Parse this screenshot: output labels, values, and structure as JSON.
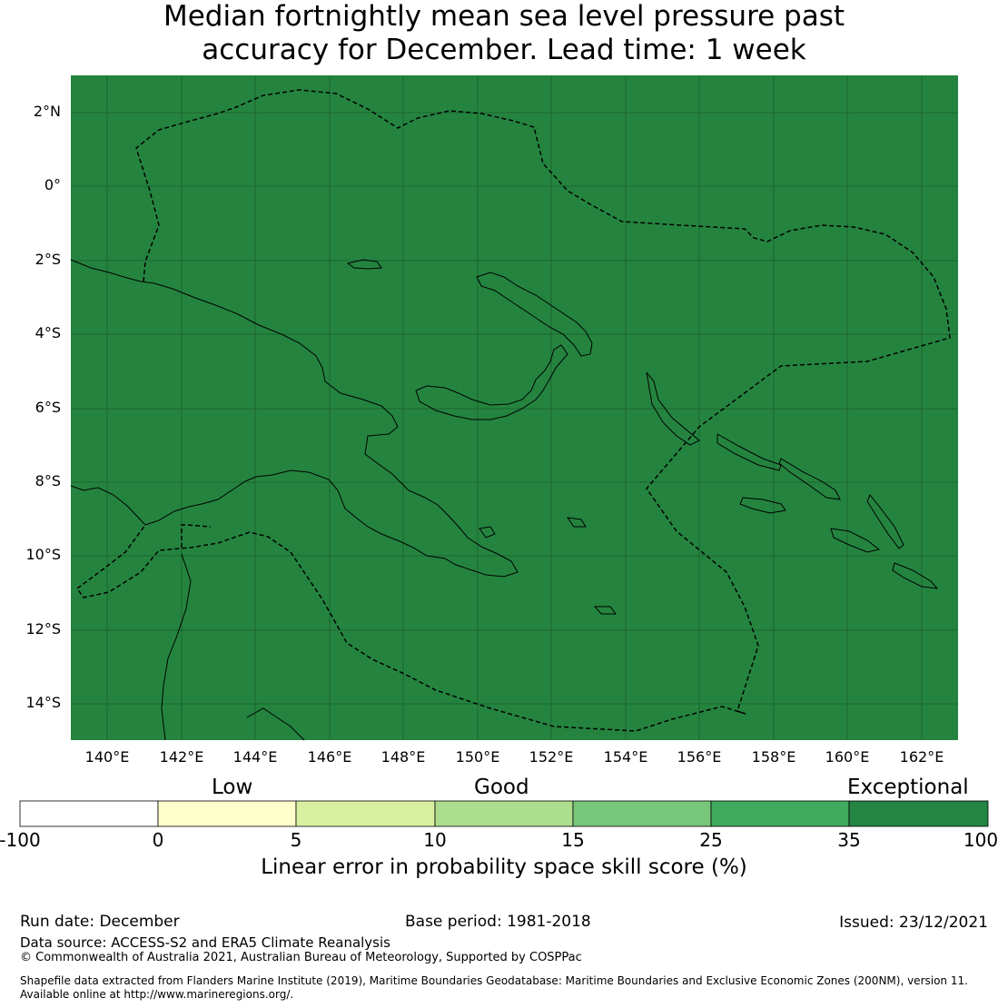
{
  "title_line1": "Median fortnightly mean sea level pressure past",
  "title_line2": "accuracy for December. Lead time: 1 week",
  "map": {
    "background_color": "#24843f",
    "lat_labels": [
      "2°N",
      "0°",
      "2°S",
      "4°S",
      "6°S",
      "8°S",
      "10°S",
      "12°S",
      "14°S"
    ],
    "lon_labels": [
      "140°E",
      "142°E",
      "144°E",
      "146°E",
      "148°E",
      "150°E",
      "152°E",
      "154°E",
      "156°E",
      "158°E",
      "160°E",
      "162°E"
    ]
  },
  "colorbar": {
    "categories": [
      "Low",
      "Good",
      "Exceptional"
    ],
    "ticks": [
      "-100",
      "0",
      "5",
      "10",
      "15",
      "25",
      "35",
      "100"
    ],
    "colors": [
      "#ffffff",
      "#ffffcc",
      "#d9f0a3",
      "#addd8e",
      "#78c679",
      "#41ab5d",
      "#238443"
    ],
    "title": "Linear error in probability space skill score (%)"
  },
  "footer": {
    "run_date": "Run date: December",
    "base_period": "Base period: 1981-2018",
    "issued": "Issued: 23/12/2021",
    "data_source": "Data source: ACCESS-S2 and ERA5 Climate Reanalysis",
    "copyright": "© Commonwealth of Australia 2021, Australian Bureau of Meteorology, Supported by COSPPac",
    "shapefile_line1": "Shapefile data extracted from Flanders Marine Institute (2019), Maritime Boundaries Geodatabase: Maritime Boundaries and Exclusive Economic Zones (200NM), version 11.",
    "shapefile_line2": "Available online at http://www.marineregions.org/."
  }
}
